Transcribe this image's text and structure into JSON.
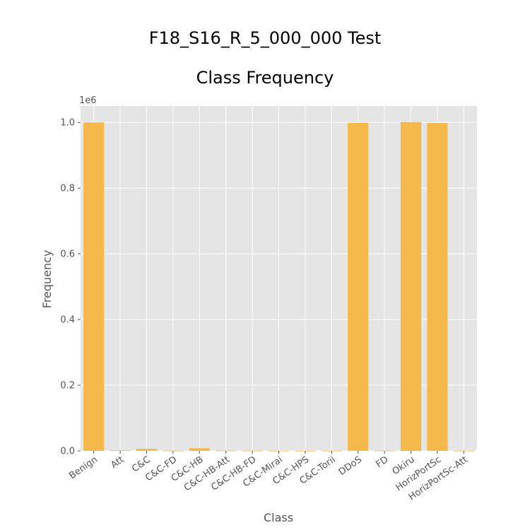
{
  "chart_data": {
    "type": "bar",
    "title": "F18_S16_R_5_000_000 Test",
    "subtitle": "Class Frequency",
    "xlabel": "Class",
    "ylabel": "Frequency",
    "y_multiplier": "1e6",
    "categories": [
      "Benign",
      "Att",
      "C&C",
      "C&C-FD",
      "C&C-HB",
      "C&C-HB-Att",
      "C&C-HB-FD",
      "C&C-Mirai",
      "C&C-HPS",
      "C&C-Torii",
      "DDoS",
      "FD",
      "Okiru",
      "HorizPortSc",
      "HorizPortSc-Att"
    ],
    "values": [
      1000000,
      1500,
      6000,
      800,
      8000,
      1000,
      700,
      400,
      300,
      500,
      999000,
      1000,
      1001000,
      998000,
      600
    ],
    "ylim": [
      0,
      1.05
    ],
    "yticks": [
      "0.0",
      "0.2",
      "0.4",
      "0.6",
      "0.8",
      "1.0"
    ],
    "ytick_values": [
      0,
      0.2,
      0.4,
      0.6,
      0.8,
      1.0
    ],
    "grid": true,
    "bar_color": "#f5b94b",
    "plot_background": "#e5e5e5",
    "grid_color": "#ffffff"
  }
}
